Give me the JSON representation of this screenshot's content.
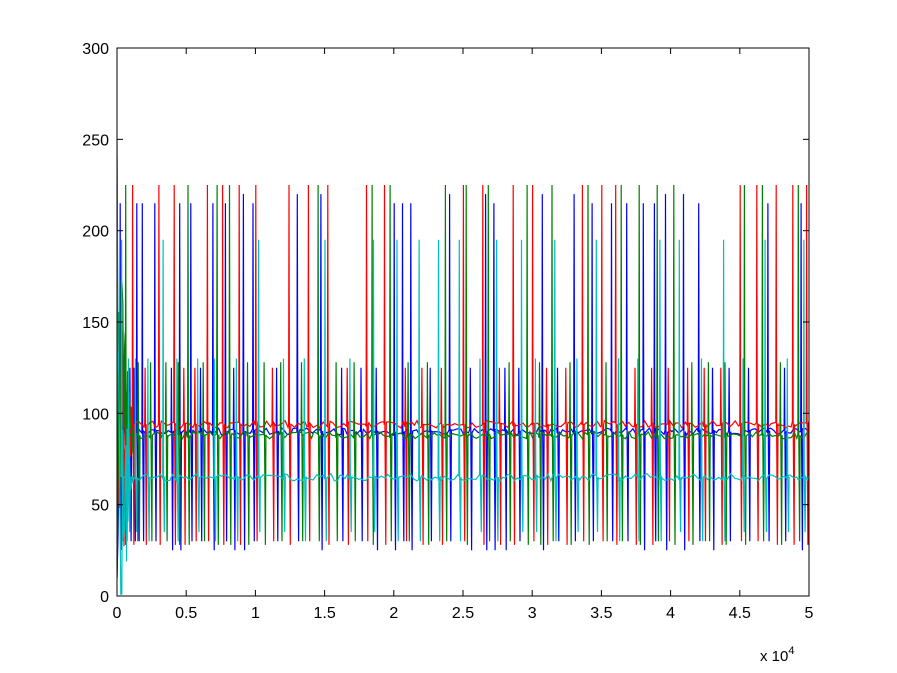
{
  "chart_data": {
    "type": "line",
    "title": "",
    "xlabel": "",
    "ylabel": "",
    "xlim": [
      0,
      5
    ],
    "ylim": [
      0,
      300
    ],
    "x_multiplier_label": "x 10",
    "x_multiplier_exponent": "4",
    "x_ticks": [
      "0",
      "0.5",
      "1",
      "1.5",
      "2",
      "2.5",
      "3",
      "3.5",
      "4",
      "4.5",
      "5"
    ],
    "y_ticks": [
      "0",
      "50",
      "100",
      "150",
      "200",
      "250",
      "300"
    ],
    "grid": false,
    "legend": "none",
    "series": [
      {
        "color": "#0000ff",
        "baseline": 90,
        "spike_highs": [
          215,
          220,
          125
        ],
        "spike_lows": [
          25,
          30
        ],
        "spike_positions": [
          0.02,
          0.09,
          0.12,
          0.14,
          0.18,
          0.27,
          0.39,
          0.45,
          0.53,
          0.6,
          0.69,
          0.78,
          0.84,
          0.91,
          0.98,
          1.15,
          1.3,
          1.47,
          1.62,
          1.76,
          1.87,
          2.0,
          2.06,
          2.12,
          2.26,
          2.4,
          2.55,
          2.66,
          2.72,
          2.8,
          2.9,
          3.07,
          3.18,
          3.3,
          3.43,
          3.57,
          3.68,
          3.8,
          3.88,
          3.96,
          4.09,
          4.2,
          4.3,
          4.42,
          4.56,
          4.7,
          4.82,
          4.94
        ]
      },
      {
        "color": "#ff0000",
        "baseline": 94,
        "spike_highs": [
          225,
          125
        ],
        "spike_lows": [
          30,
          28
        ],
        "spike_positions": [
          0.05,
          0.11,
          0.2,
          0.3,
          0.41,
          0.48,
          0.56,
          0.65,
          0.76,
          0.88,
          1.0,
          1.12,
          1.24,
          1.38,
          1.52,
          1.66,
          1.8,
          1.93,
          2.08,
          2.2,
          2.34,
          2.5,
          2.64,
          2.76,
          2.86,
          3.0,
          3.1,
          3.24,
          3.36,
          3.5,
          3.6,
          3.74,
          3.86,
          3.98,
          4.12,
          4.24,
          4.36,
          4.5,
          4.62,
          4.76,
          4.88,
          4.98
        ]
      },
      {
        "color": "#008000",
        "baseline": 88,
        "spike_highs": [
          225,
          128
        ],
        "spike_lows": [
          28,
          30
        ],
        "spike_positions": [
          0.06,
          0.15,
          0.24,
          0.35,
          0.44,
          0.51,
          0.62,
          0.72,
          0.81,
          0.94,
          1.06,
          1.18,
          1.33,
          1.45,
          1.58,
          1.71,
          1.84,
          1.97,
          2.1,
          2.24,
          2.37,
          2.52,
          2.68,
          2.83,
          2.96,
          3.05,
          3.14,
          3.27,
          3.4,
          3.53,
          3.64,
          3.77,
          3.9,
          4.02,
          4.15,
          4.27,
          4.39,
          4.53,
          4.66,
          4.79,
          4.92
        ]
      },
      {
        "color": "#00bfbf",
        "baseline": 65,
        "spike_highs": [
          195,
          130
        ],
        "spike_lows": [
          30,
          35
        ],
        "spike_positions": [
          0.03,
          0.08,
          0.13,
          0.22,
          0.33,
          0.43,
          0.58,
          0.7,
          0.86,
          1.02,
          1.2,
          1.35,
          1.5,
          1.68,
          1.85,
          2.02,
          2.18,
          2.32,
          2.47,
          2.62,
          2.74,
          2.92,
          3.02,
          3.16,
          3.32,
          3.46,
          3.62,
          3.76,
          3.92,
          4.06,
          4.22,
          4.38,
          4.52,
          4.68,
          4.84,
          4.96
        ]
      }
    ]
  }
}
